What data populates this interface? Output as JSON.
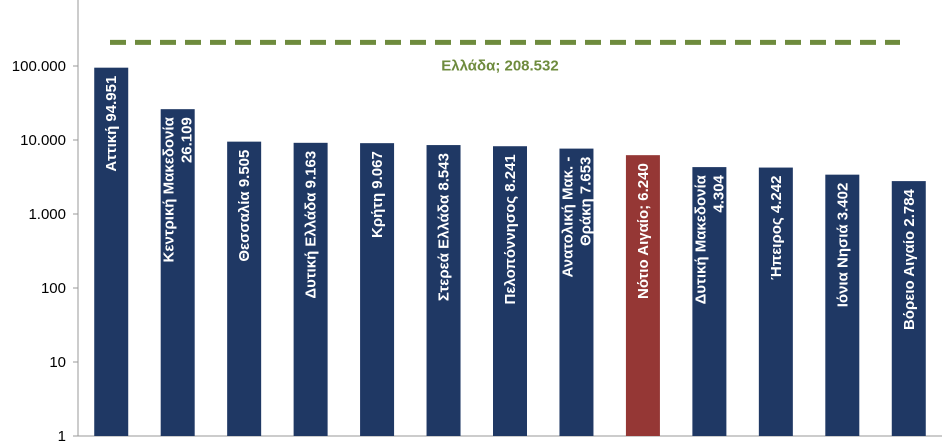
{
  "chart_data": {
    "type": "bar",
    "log_scale": true,
    "values": [
      94951,
      26109,
      9505,
      9163,
      9067,
      8543,
      8241,
      7653,
      6240,
      4304,
      4242,
      3402,
      2784
    ],
    "value_labels": [
      "Αττική 94.951",
      "Κεντρική Μακεδονία\n26.109",
      "Θεσσαλία 9.505",
      "Δυτική Ελλάδα 9.163",
      "Κρήτη 9.067",
      "Στερεά Ελλάδα 8.543",
      "Πελοπόννησος 8.241",
      "Ανατολική Μακ. -\nΘράκη 7.653",
      "Νότιο Αιγαίο; 6.240",
      "Δυτική Μακεδονία\n4.304",
      "Ήπειρος 4.242",
      "Ιόνια Νησιά 3.402",
      "Βόρειο Αιγαίο 2.784"
    ],
    "colors": [
      "#1f3864",
      "#1f3864",
      "#1f3864",
      "#1f3864",
      "#1f3864",
      "#1f3864",
      "#1f3864",
      "#1f3864",
      "#953735",
      "#1f3864",
      "#1f3864",
      "#1f3864",
      "#1f3864"
    ],
    "reference_line": {
      "value": 208532,
      "label": "Ελλάδα; 208.532",
      "color": "#6e8b3d"
    },
    "ylim": [
      1,
      780000
    ],
    "yticks": [
      1,
      10,
      100,
      {
        "value": 1000,
        "label": "1.000"
      },
      {
        "value": 10000,
        "label": "10.000"
      },
      {
        "value": 100000,
        "label": "100.000"
      }
    ]
  }
}
